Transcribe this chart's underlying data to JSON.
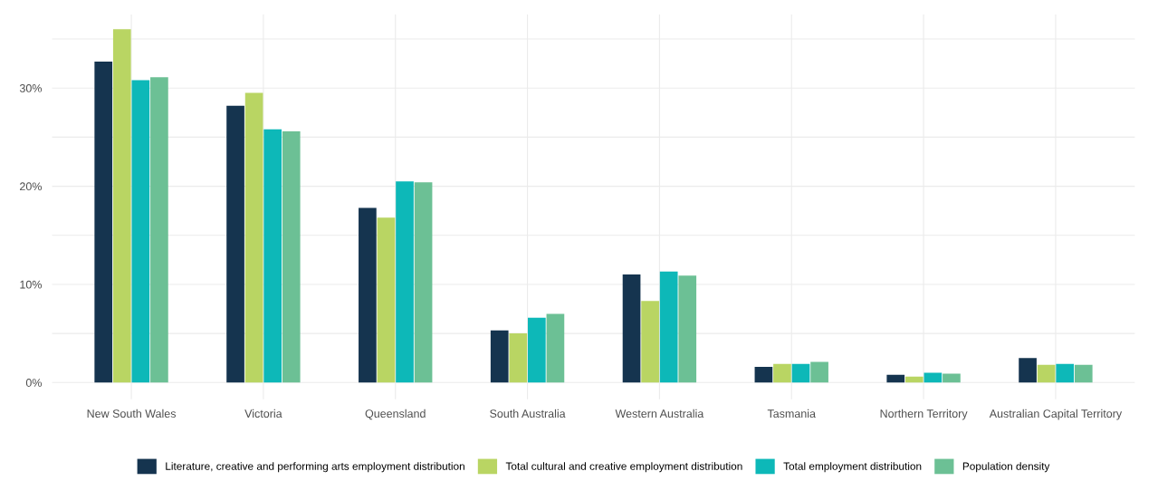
{
  "chart_data": {
    "type": "bar",
    "categories": [
      "New South Wales",
      "Victoria",
      "Queensland",
      "South Australia",
      "Western Australia",
      "Tasmania",
      "Northern Territory",
      "Australian Capital Territory"
    ],
    "series": [
      {
        "name": "Literature, creative and performing arts employment distribution",
        "color": "#15344f",
        "values": [
          32.7,
          28.2,
          17.8,
          5.3,
          11.0,
          1.6,
          0.8,
          2.5
        ]
      },
      {
        "name": "Total cultural and creative employment distribution",
        "color": "#b9d563",
        "values": [
          36.0,
          29.5,
          16.8,
          5.0,
          8.3,
          1.9,
          0.6,
          1.8
        ]
      },
      {
        "name": "Total employment distribution",
        "color": "#0db8b8",
        "values": [
          30.8,
          25.8,
          20.5,
          6.6,
          11.3,
          1.9,
          1.0,
          1.9
        ]
      },
      {
        "name": "Population density",
        "color": "#6cc095",
        "values": [
          31.1,
          25.6,
          20.4,
          7.0,
          10.9,
          2.1,
          0.9,
          1.8
        ]
      }
    ],
    "ylim": [
      -1.7,
      37.5
    ],
    "yticks": [
      {
        "value": 0,
        "label": "0%"
      },
      {
        "value": 5,
        "label": null
      },
      {
        "value": 10,
        "label": "10%"
      },
      {
        "value": 15,
        "label": null
      },
      {
        "value": 20,
        "label": "20%"
      },
      {
        "value": 25,
        "label": null
      },
      {
        "value": 30,
        "label": "30%"
      },
      {
        "value": 35,
        "label": null
      }
    ],
    "grid": true,
    "legend": "bottom"
  }
}
